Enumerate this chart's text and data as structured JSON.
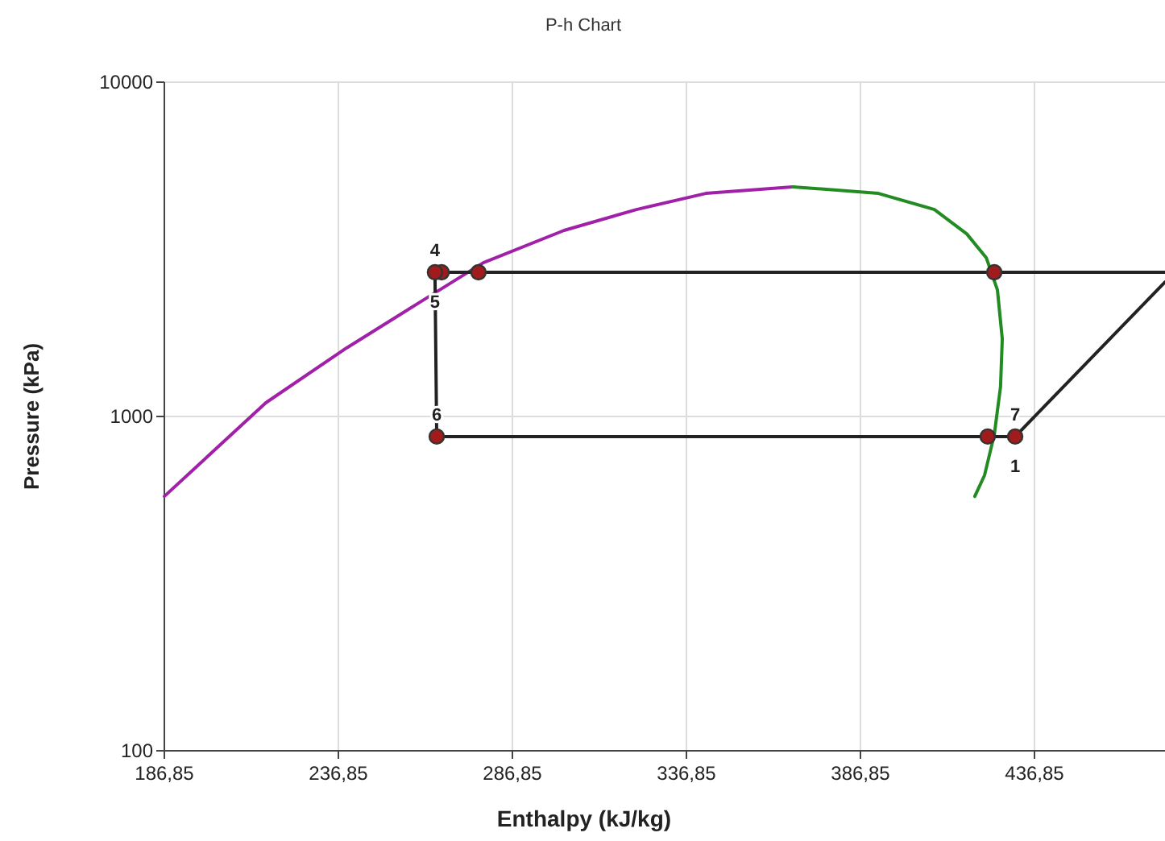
{
  "chart_data": {
    "type": "line",
    "title": "P-h Chart",
    "xlabel": "Enthalpy (kJ/kg)",
    "ylabel": "Pressure (kPa)",
    "log": "y",
    "grid": true,
    "xlim": [
      186.85,
      474.35
    ],
    "ylim": [
      100,
      10000
    ],
    "xticks": [
      {
        "value": 186.85,
        "label": "186,85"
      },
      {
        "value": 236.85,
        "label": "236,85"
      },
      {
        "value": 286.85,
        "label": "286,85"
      },
      {
        "value": 336.85,
        "label": "336,85"
      },
      {
        "value": 386.85,
        "label": "386,85"
      },
      {
        "value": 436.85,
        "label": "436,85"
      }
    ],
    "yticks": [
      100,
      1000,
      10000
    ],
    "series": [
      {
        "color": "#a020a8",
        "marker": "none",
        "x": [
          186.85,
          216.0,
          239.2,
          260.0,
          278.5,
          301.7,
          322.5,
          342.4,
          367.4
        ],
        "values": [
          577,
          1099,
          1603,
          2188,
          2884,
          3603,
          4160,
          4648,
          4864
        ]
      },
      {
        "color": "#228b22",
        "marker": "none",
        "x": [
          367.4,
          392.0,
          408.1,
          417.4,
          423.0,
          426.2,
          427.6,
          427.1,
          425.3,
          422.5,
          419.7
        ],
        "values": [
          4864,
          4648,
          4160,
          3516,
          2984,
          2392,
          1706,
          1228,
          882,
          667,
          577
        ]
      },
      {
        "color": "#222222",
        "marker": "none",
        "x": [
          474.35,
          425.3,
          277.1,
          266.5,
          264.6,
          265.1,
          423.4,
          431.3,
          474.35
        ],
        "values": [
          2700,
          2700,
          2700,
          2700,
          2700,
          871,
          871,
          871,
          2525
        ]
      },
      {
        "type": "scatter",
        "color": "#a01c1c",
        "marker": "circle",
        "x": [
          425.3,
          277.1,
          266.5,
          264.6,
          265.1,
          423.4,
          431.3
        ],
        "values": [
          2700,
          2700,
          2700,
          2700,
          871,
          871,
          871
        ]
      }
    ],
    "annotations": [
      {
        "text": "4",
        "x": 264.6,
        "y": 2700
      },
      {
        "text": "5",
        "x": 264.6,
        "y": 2700
      },
      {
        "text": "6",
        "x": 265.1,
        "y": 871
      },
      {
        "text": "7",
        "x": 431.3,
        "y": 871
      },
      {
        "text": "1",
        "x": 431.3,
        "y": 871
      }
    ]
  }
}
